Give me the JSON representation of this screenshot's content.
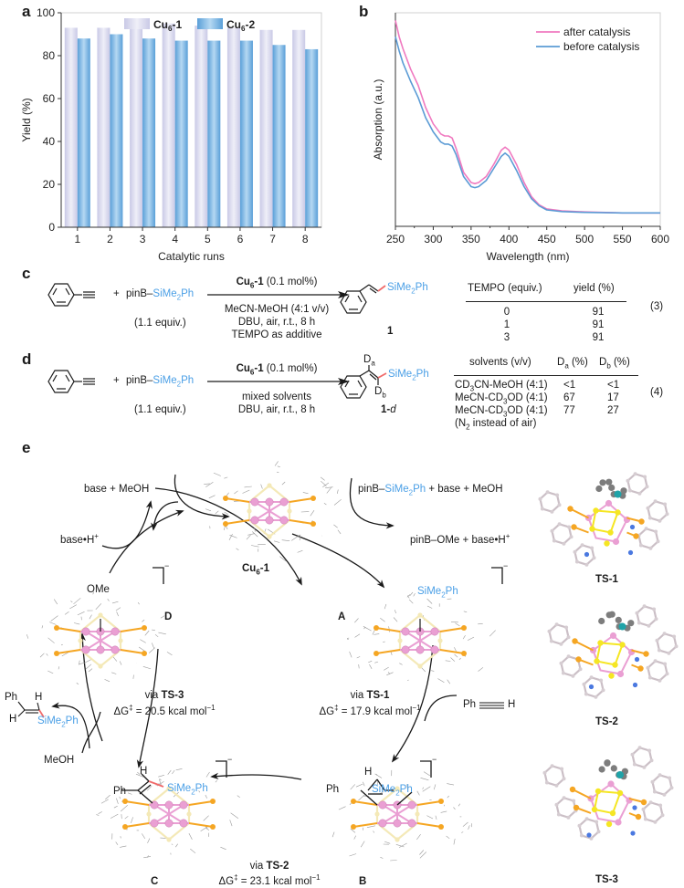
{
  "panels": {
    "a": "a",
    "b": "b",
    "c": "c",
    "d": "d",
    "e": "e"
  },
  "chart_data": [
    {
      "type": "bar",
      "panel": "a",
      "title": "",
      "xlabel": "Catalytic runs",
      "ylabel": "Yield (%)",
      "ylim": [
        0,
        100
      ],
      "yticks": [
        0,
        20,
        40,
        60,
        80,
        100
      ],
      "categories": [
        "1",
        "2",
        "3",
        "4",
        "5",
        "6",
        "7",
        "8"
      ],
      "series": [
        {
          "name": "Cu6-1",
          "label_main": "Cu",
          "label_sub": "6",
          "label_tail": "-1",
          "color": "#dcdcf0",
          "values": [
            93,
            93,
            94,
            95,
            94,
            93,
            92,
            92
          ]
        },
        {
          "name": "Cu6-2",
          "label_main": "Cu",
          "label_sub": "6",
          "label_tail": "-2",
          "color": "#7fb6e3",
          "values": [
            88,
            90,
            88,
            87,
            87,
            87,
            85,
            83
          ]
        }
      ],
      "legend": "top-center",
      "grid": false
    },
    {
      "type": "line",
      "panel": "b",
      "title": "",
      "xlabel": "Wavelength (nm)",
      "ylabel": "Absorption (a.u.)",
      "xlim": [
        250,
        600
      ],
      "xticks": [
        250,
        300,
        350,
        400,
        450,
        500,
        550,
        600
      ],
      "ylim": [
        0,
        1
      ],
      "legend": "top-right",
      "grid": false,
      "series": [
        {
          "name": "after catalysis",
          "color": "#f07ac0",
          "x": [
            250,
            255,
            260,
            270,
            280,
            290,
            300,
            310,
            315,
            320,
            325,
            330,
            340,
            350,
            355,
            360,
            370,
            380,
            390,
            395,
            400,
            410,
            420,
            430,
            440,
            450,
            470,
            500,
            550,
            600
          ],
          "y": [
            0.98,
            0.9,
            0.84,
            0.74,
            0.66,
            0.55,
            0.47,
            0.42,
            0.41,
            0.41,
            0.4,
            0.35,
            0.23,
            0.18,
            0.175,
            0.18,
            0.21,
            0.27,
            0.34,
            0.355,
            0.34,
            0.27,
            0.18,
            0.11,
            0.07,
            0.05,
            0.04,
            0.035,
            0.03,
            0.03
          ]
        },
        {
          "name": "before catalysis",
          "color": "#5b9bd5",
          "x": [
            250,
            255,
            260,
            270,
            280,
            290,
            300,
            310,
            315,
            320,
            325,
            330,
            340,
            350,
            355,
            360,
            370,
            380,
            390,
            395,
            400,
            410,
            420,
            430,
            440,
            450,
            470,
            500,
            550,
            600
          ],
          "y": [
            0.9,
            0.83,
            0.77,
            0.68,
            0.6,
            0.5,
            0.43,
            0.38,
            0.37,
            0.37,
            0.36,
            0.32,
            0.21,
            0.16,
            0.155,
            0.16,
            0.19,
            0.25,
            0.31,
            0.325,
            0.31,
            0.24,
            0.16,
            0.1,
            0.065,
            0.045,
            0.037,
            0.033,
            0.03,
            0.03
          ]
        }
      ]
    }
  ],
  "scheme_c": {
    "plus": "+",
    "reagent_pre": "pinB–",
    "reagent_si": "SiMe",
    "reagent_si_sub": "2",
    "reagent_si_tail": "Ph",
    "equiv": "(1.1 equiv.)",
    "cat_main": "Cu",
    "cat_sub": "6",
    "cat_tail": "-1",
    "cat_loading": " (0.1 mol%)",
    "cond1": "MeCN-MeOH (4:1 v/v)",
    "cond2": "DBU, air, r.t., 8 h",
    "cond3": "TEMPO as additive",
    "product_label": "1",
    "product_si": "SiMe",
    "product_si_sub": "2",
    "product_si_tail": "Ph",
    "table_headers": [
      "TEMPO (equiv.)",
      "yield (%)"
    ],
    "table_rows": [
      [
        "0",
        "91"
      ],
      [
        "1",
        "91"
      ],
      [
        "3",
        "91"
      ]
    ],
    "eq_number": "(3)"
  },
  "scheme_d": {
    "plus": "+",
    "reagent_pre": "pinB–",
    "reagent_si": "SiMe",
    "reagent_si_sub": "2",
    "reagent_si_tail": "Ph",
    "equiv": "(1.1 equiv.)",
    "cat_main": "Cu",
    "cat_sub": "6",
    "cat_tail": "-1",
    "cat_loading": " (0.1 mol%)",
    "cond1": "mixed solvents",
    "cond2": "DBU, air, r.t., 8 h",
    "product_label_main": "1-",
    "product_label_ital": "d",
    "da": "D",
    "da_sub": "a",
    "db": "D",
    "db_sub": "b",
    "product_si": "SiMe",
    "product_si_sub": "2",
    "product_si_tail": "Ph",
    "table_headers": [
      "solvents (v/v)",
      "Da (%)",
      "Db (%)"
    ],
    "table_header_parts": {
      "h1": "solvents (v/v)",
      "h2_main": "D",
      "h2_sub": "a",
      "h2_tail": " (%)",
      "h3_main": "D",
      "h3_sub": "b",
      "h3_tail": " (%)"
    },
    "table_rows": [
      {
        "solvent_pre": "CD",
        "solvent_sub": "3",
        "solvent_tail": "CN-MeOH (4:1)",
        "da": "<1",
        "db": "<1"
      },
      {
        "solvent_pre": "MeCN-CD",
        "solvent_sub": "3",
        "solvent_tail": "OD (4:1)",
        "da": "67",
        "db": "17"
      },
      {
        "solvent_pre": "MeCN-CD",
        "solvent_sub": "3",
        "solvent_tail": "OD (4:1)",
        "da": "77",
        "db": "27"
      }
    ],
    "footnote_pre": "(N",
    "footnote_sub": "2",
    "footnote_tail": " instead of air)",
    "eq_number": "(4)"
  },
  "cycle": {
    "center_label_main": "Cu",
    "center_label_sub": "6",
    "center_label_tail": "-1",
    "top_left_out": "base + MeOH",
    "top_left_in_pre": "base•H",
    "top_left_in_sup": "+",
    "top_right_in_pre": "pinB–",
    "top_right_in_si": "SiMe",
    "top_right_in_sub": "2",
    "top_right_in_tail": "Ph",
    "top_right_in_rest": " + base + MeOH",
    "top_right_out_pre": "pinB–OMe + base•H",
    "top_right_out_sup": "+",
    "intermediates": {
      "A": {
        "label": "A",
        "ligand_si": "SiMe",
        "ligand_sub": "2",
        "ligand_tail": "Ph",
        "charge": "−"
      },
      "B": {
        "label": "B",
        "ph": "Ph",
        "h": "H",
        "ligand_si": "SiMe",
        "ligand_sub": "2",
        "ligand_tail": "Ph",
        "charge": "−"
      },
      "C": {
        "label": "C",
        "ph": "Ph",
        "h": "H",
        "ligand_si": "SiMe",
        "ligand_sub": "2",
        "ligand_tail": "Ph",
        "charge": "−"
      },
      "D": {
        "label": "D",
        "ligand": "OMe",
        "charge": "−"
      }
    },
    "step_AB": {
      "via": "via ",
      "ts": "TS-1",
      "dg_pre": "ΔG",
      "dg_sup": "‡",
      "dg_val": " = 17.9 kcal mol",
      "dg_unit_sup": "−1"
    },
    "step_BC": {
      "via": "via ",
      "ts": "TS-2",
      "dg_pre": "ΔG",
      "dg_sup": "‡",
      "dg_val": " = 23.1 kcal mol",
      "dg_unit_sup": "−1"
    },
    "step_CD": {
      "via": "via ",
      "ts": "TS-3",
      "dg_pre": "ΔG",
      "dg_sup": "‡",
      "dg_val": " = 20.5 kcal mol",
      "dg_unit_sup": "−1"
    },
    "alkyne_in": {
      "ph": "Ph",
      "h": "H"
    },
    "product_out": {
      "ph": "Ph",
      "h1": "H",
      "h2": "H",
      "si": "SiMe",
      "si_sub": "2",
      "si_tail": "Ph"
    },
    "meoh_in": "MeOH",
    "ts_labels": [
      "TS-1",
      "TS-2",
      "TS-3"
    ]
  },
  "colors": {
    "cu": "#ea9fd3",
    "s": "#f4e9b7",
    "p": "#f5a623",
    "silyl_text": "#4a9fe6",
    "new_bond": "#f06a6a",
    "ts_s": "#f5e623",
    "ts_si": "#1fa3a8",
    "ts_n": "#4a78e0"
  }
}
